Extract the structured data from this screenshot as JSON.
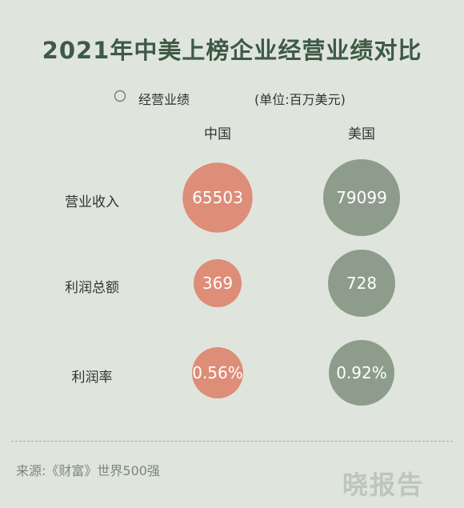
{
  "chart_data": {
    "type": "bubble-table",
    "title": "2021年中美上榜企业经营业绩对比",
    "legend": "经营业绩",
    "unit": "(单位:百万美元)",
    "columns": [
      {
        "name": "中国",
        "color": "#dd8d78"
      },
      {
        "name": "美国",
        "color": "#8e9c8c"
      }
    ],
    "rows": [
      {
        "label": "营业收入",
        "values": [
          65503,
          79099
        ],
        "display": [
          "65503",
          "79099"
        ]
      },
      {
        "label": "利润总额",
        "values": [
          369,
          728
        ],
        "display": [
          "369",
          "728"
        ]
      },
      {
        "label": "利润率",
        "values": [
          0.56,
          0.92
        ],
        "display": [
          "0.56%",
          "0.92%"
        ]
      }
    ]
  },
  "footer": {
    "source": "来源:《财富》世界500强",
    "watermark": "晓报告"
  }
}
